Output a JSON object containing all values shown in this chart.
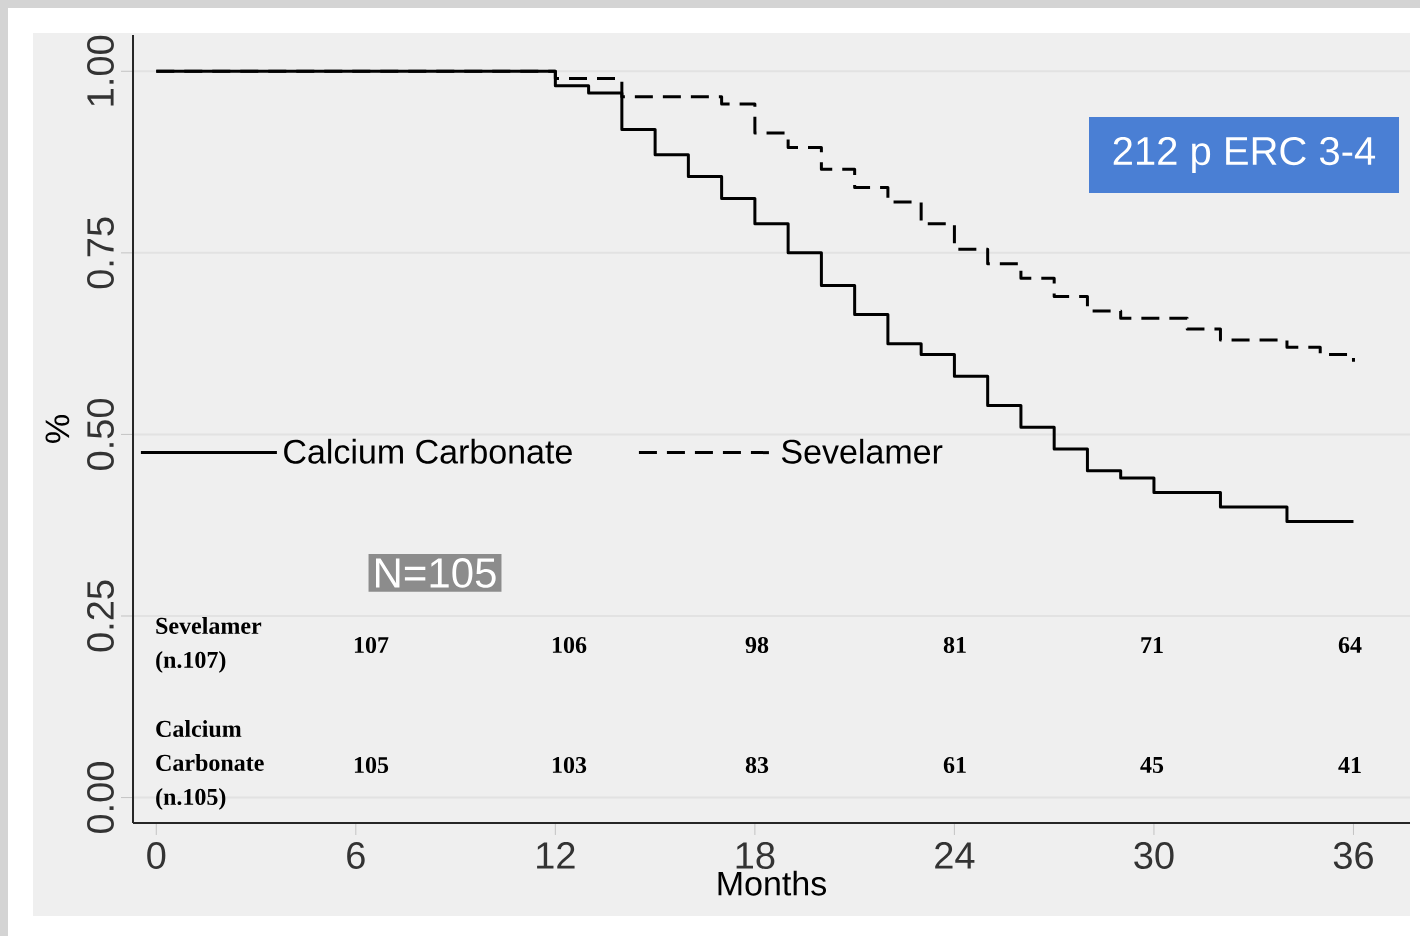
{
  "chart_data": {
    "type": "step",
    "xlabel": "Months",
    "ylabel": "%",
    "xlim": [
      -0.7,
      37.7
    ],
    "ylim": [
      -0.035,
      1.05
    ],
    "xticks": [
      0,
      6,
      12,
      18,
      24,
      30,
      36
    ],
    "yticks": [
      {
        "value": 0,
        "label": "0.00"
      },
      {
        "value": 0.25,
        "label": "0.25"
      },
      {
        "value": 0.5,
        "label": "0.50"
      },
      {
        "value": 0.75,
        "label": "0.75"
      },
      {
        "value": 1,
        "label": "1.00"
      }
    ],
    "grid": "y",
    "legend": "left",
    "series": [
      {
        "name": "Calcium Carbonate",
        "color": "#000000",
        "line_style": "solid",
        "x": [
          0,
          12,
          13,
          14,
          15,
          16,
          17,
          18,
          19,
          20,
          21,
          22,
          23,
          24,
          25,
          26,
          27,
          28,
          29,
          30,
          32,
          34,
          36
        ],
        "values": [
          1.0,
          0.98,
          0.97,
          0.92,
          0.885,
          0.855,
          0.825,
          0.79,
          0.75,
          0.705,
          0.665,
          0.625,
          0.61,
          0.58,
          0.54,
          0.51,
          0.48,
          0.45,
          0.44,
          0.42,
          0.4,
          0.38,
          0.38
        ]
      },
      {
        "name": "Sevelamer",
        "color": "#000000",
        "line_style": "dashed",
        "x": [
          0,
          12,
          14,
          17,
          18,
          19,
          20,
          21,
          22,
          23,
          24,
          25,
          26,
          27,
          28,
          29,
          31,
          32,
          34,
          35,
          36
        ],
        "values": [
          1.0,
          0.99,
          0.965,
          0.955,
          0.915,
          0.895,
          0.865,
          0.84,
          0.82,
          0.79,
          0.755,
          0.735,
          0.715,
          0.69,
          0.67,
          0.66,
          0.645,
          0.63,
          0.62,
          0.61,
          0.6
        ]
      }
    ],
    "annotations": [
      "212 p ERC 3-4",
      "N=105",
      "Sevelamer (n.107)",
      "107",
      "106",
      "98",
      "81",
      "71",
      "64",
      "Calcium Carbonate (n.105)",
      "105",
      "103",
      "83",
      "61",
      "45",
      "41"
    ]
  }
}
